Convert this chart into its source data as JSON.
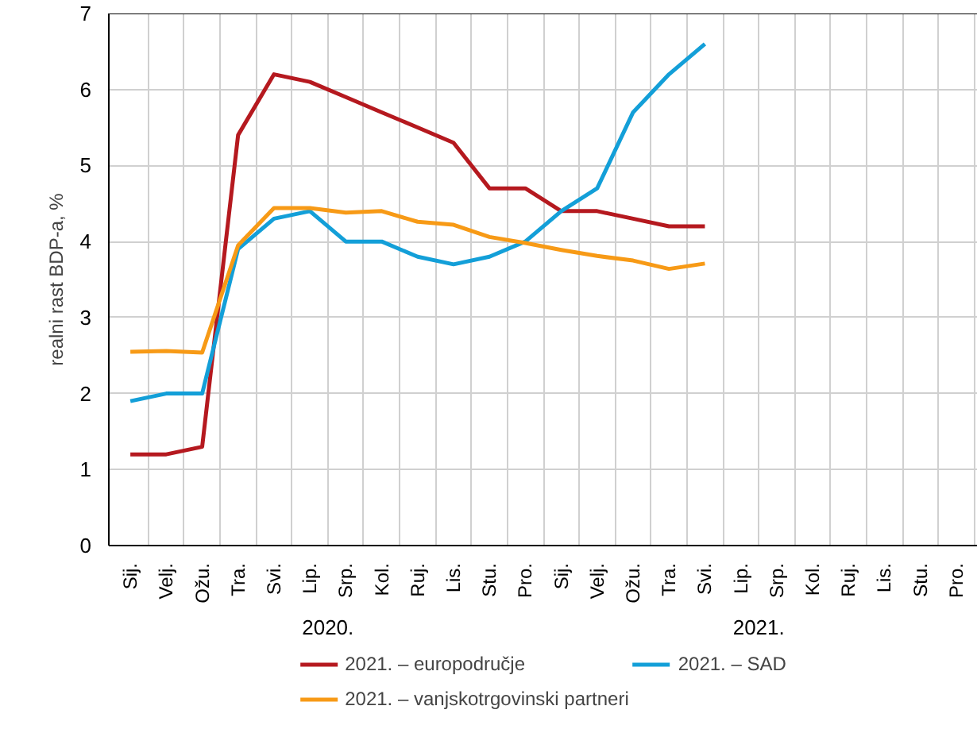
{
  "chart_data": {
    "type": "line",
    "ylabel": "realni rast BDP-a, %",
    "categories": [
      "Sij.",
      "Velj.",
      "Ožu.",
      "Tra.",
      "Svi.",
      "Lip.",
      "Srp.",
      "Kol.",
      "Ruj.",
      "Lis.",
      "Stu.",
      "Pro.",
      "Sij.",
      "Velj.",
      "Ožu.",
      "Tra.",
      "Svi.",
      "Lip.",
      "Srp.",
      "Kol.",
      "Ruj.",
      "Lis.",
      "Stu.",
      "Pro."
    ],
    "annotations": [
      "2020.",
      "2021."
    ],
    "series": [
      {
        "name": "2021. – europodručje",
        "color": "#b5191f",
        "values": [
          1.2,
          1.2,
          1.3,
          5.4,
          6.2,
          6.1,
          5.9,
          5.7,
          5.5,
          5.3,
          4.7,
          4.7,
          4.4,
          4.4,
          4.3,
          4.2,
          4.2,
          null,
          null,
          null,
          null,
          null,
          null,
          null
        ]
      },
      {
        "name": "2021. – SAD",
        "color": "#139fd8",
        "values": [
          1.9,
          2.0,
          2.0,
          3.9,
          4.3,
          4.4,
          4.0,
          4.0,
          3.8,
          3.7,
          3.8,
          4.0,
          4.4,
          4.7,
          5.7,
          6.2,
          6.6,
          null,
          null,
          null,
          null,
          null,
          null,
          null
        ]
      },
      {
        "name": "2021. – vanjskotrgovinski partneri",
        "color": "#f79a16",
        "values": [
          2.55,
          2.56,
          2.54,
          3.95,
          4.44,
          4.44,
          4.38,
          4.4,
          4.26,
          4.22,
          4.06,
          3.98,
          3.89,
          3.81,
          3.75,
          3.64,
          3.71,
          null,
          null,
          null,
          null,
          null,
          null,
          null
        ]
      }
    ],
    "ylim": [
      0,
      7
    ],
    "yticks": [
      0,
      1,
      2,
      3,
      4,
      5,
      6,
      7
    ],
    "grid": true,
    "legend": "bottom"
  }
}
